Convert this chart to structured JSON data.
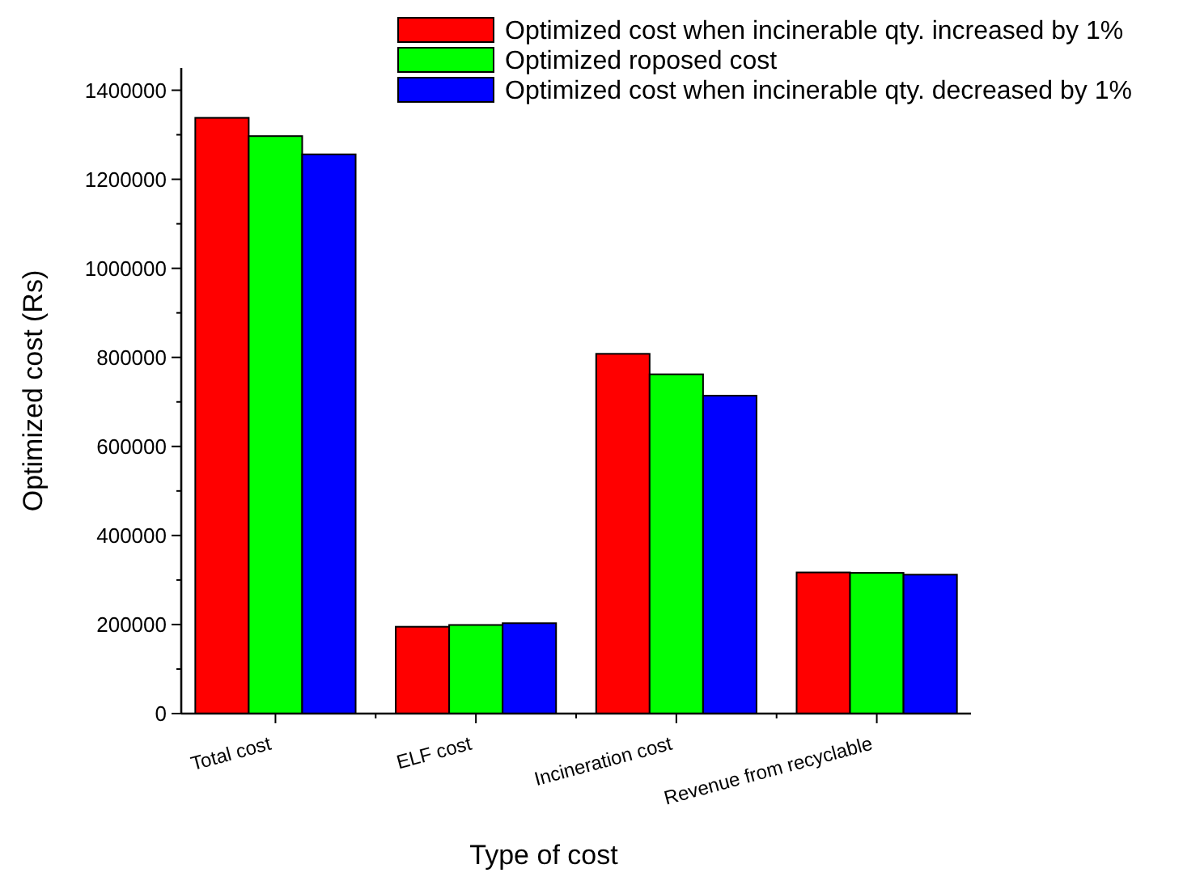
{
  "chart_data": {
    "type": "bar",
    "xlabel": "Type of cost",
    "ylabel": "Optimized cost (Rs)",
    "categories": [
      "Total cost",
      "ELF cost",
      "Incineration cost",
      "Revenue from recyclable"
    ],
    "series": [
      {
        "name": "Optimized cost when incinerable qty. increased by 1%",
        "color": "#ff0000",
        "values": [
          1338000,
          195000,
          808000,
          317000
        ]
      },
      {
        "name": "Optimized roposed cost",
        "color": "#00ff00",
        "values": [
          1297000,
          199000,
          762000,
          316000
        ]
      },
      {
        "name": "Optimized cost when incinerable qty. decreased by 1%",
        "color": "#0000ff",
        "values": [
          1256000,
          203000,
          714000,
          312000
        ]
      }
    ],
    "ylim": [
      0,
      1450000
    ],
    "yticks": [
      0,
      {
        "value": 100000,
        "label": null
      },
      200000,
      {
        "value": 300000,
        "label": null
      },
      400000,
      {
        "value": 500000,
        "label": null
      },
      600000,
      {
        "value": 700000,
        "label": null
      },
      800000,
      {
        "value": 900000,
        "label": null
      },
      1000000,
      {
        "value": 1100000,
        "label": null
      },
      1200000,
      {
        "value": 1300000,
        "label": null
      },
      1400000
    ],
    "grid": false,
    "legend": "top right"
  }
}
